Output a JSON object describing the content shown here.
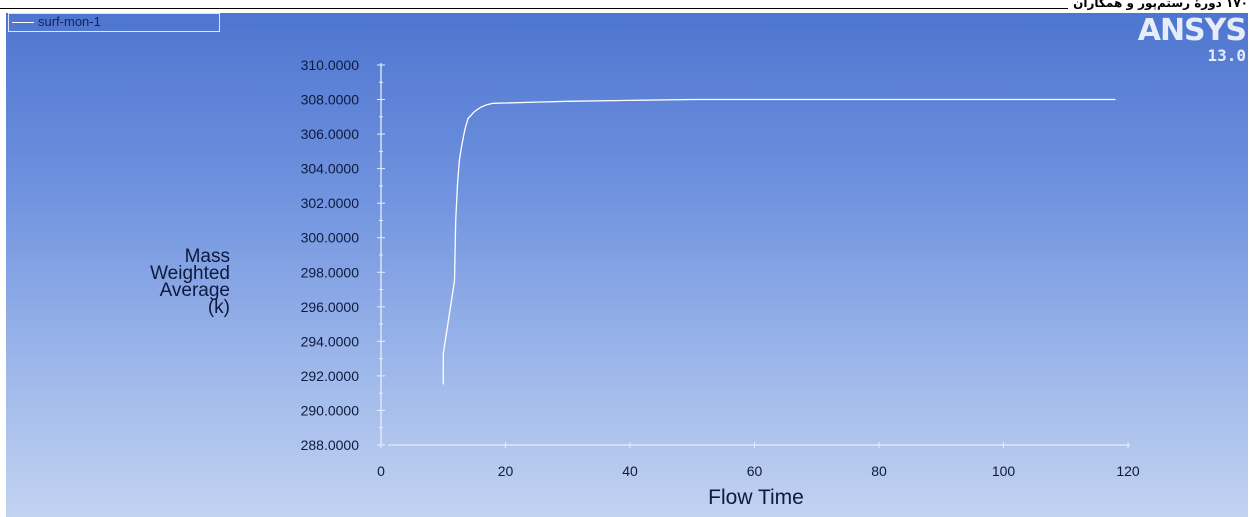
{
  "page_header": "۱۷۰ دورهٔ رستم‌پور و همکاران",
  "brand": {
    "name": "ANSYS",
    "version": "13.0"
  },
  "legend": {
    "label": "surf-mon-1"
  },
  "chart_data": {
    "type": "line",
    "title": "",
    "xlabel": "Flow Time",
    "ylabel_lines": [
      "Mass",
      "Weighted",
      "Average",
      "(k)"
    ],
    "xlim": [
      0,
      120
    ],
    "ylim": [
      288,
      310
    ],
    "x_ticks": [
      0,
      20,
      40,
      60,
      80,
      100,
      120
    ],
    "y_ticks": [
      288,
      290,
      292,
      294,
      296,
      298,
      300,
      302,
      304,
      306,
      308,
      310
    ],
    "x_tick_labels": [
      "0",
      "20",
      "40",
      "60",
      "80",
      "100",
      "120"
    ],
    "y_tick_labels": [
      "288.0000",
      "290.0000",
      "292.0000",
      "294.0000",
      "296.0000",
      "298.0000",
      "300.0000",
      "302.0000",
      "304.0000",
      "306.0000",
      "308.0000",
      "310.0000"
    ],
    "grid": false,
    "legend_position": "top-left",
    "line_color": "#ffffff",
    "series": [
      {
        "name": "surf-mon-1",
        "x": [
          10,
          10,
          11.8,
          12,
          12.3,
          12.6,
          13,
          13.5,
          14,
          15,
          16,
          17,
          18,
          20,
          25,
          30,
          40,
          50,
          60,
          80,
          100,
          118
        ],
        "y": [
          291.5,
          293.3,
          297.5,
          301,
          303.2,
          304.5,
          305.4,
          306.3,
          306.9,
          307.3,
          307.55,
          307.7,
          307.78,
          307.8,
          307.85,
          307.9,
          307.95,
          308.0,
          308.0,
          308.0,
          308.0,
          308.0
        ]
      }
    ]
  }
}
